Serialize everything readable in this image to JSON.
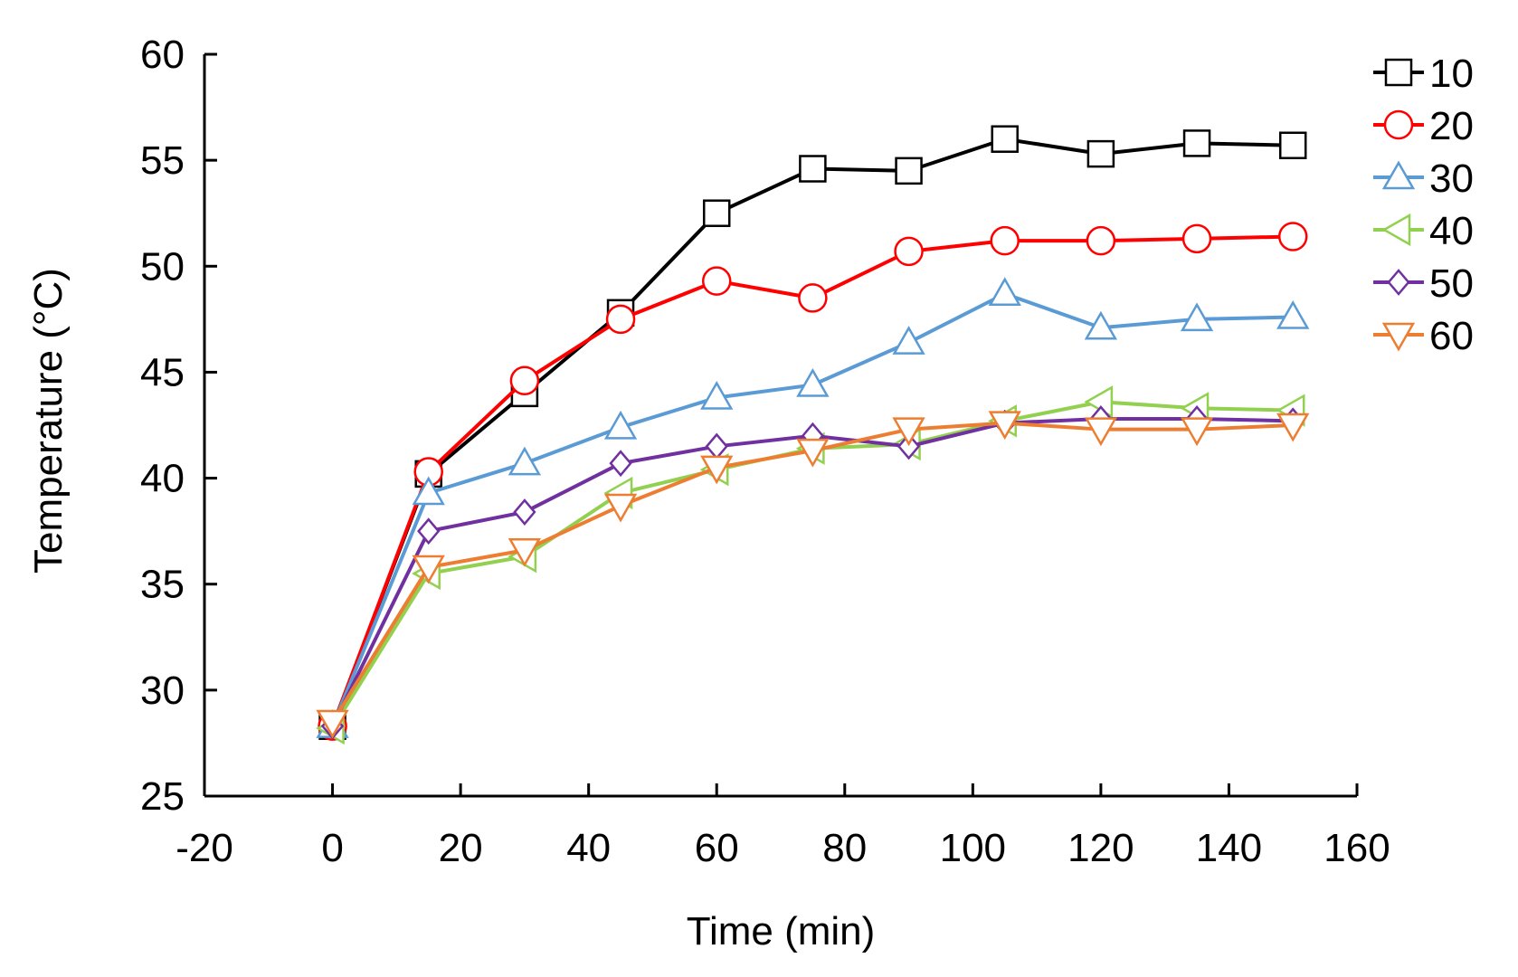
{
  "chart_data": {
    "type": "line",
    "title": "",
    "xlabel": "Time (min)",
    "ylabel": "Temperature (°C)",
    "xlim": [
      -20,
      160
    ],
    "ylim": [
      25,
      60
    ],
    "xticks": [
      -20,
      0,
      20,
      40,
      60,
      80,
      100,
      120,
      140,
      160
    ],
    "yticks": [
      25,
      30,
      35,
      40,
      45,
      50,
      55,
      60
    ],
    "legend_position": "right",
    "x": [
      0,
      15,
      30,
      45,
      60,
      75,
      90,
      105,
      120,
      135,
      150
    ],
    "series": [
      {
        "name": "10",
        "marker": "square",
        "color": "#000000",
        "values": [
          28.3,
          40.2,
          44.0,
          47.8,
          52.5,
          54.6,
          54.5,
          56.0,
          55.3,
          55.8,
          55.7
        ]
      },
      {
        "name": "20",
        "marker": "circle",
        "color": "#ff0000",
        "values": [
          28.3,
          40.3,
          44.6,
          47.5,
          49.3,
          48.5,
          50.7,
          51.2,
          51.2,
          51.3,
          51.4
        ]
      },
      {
        "name": "30",
        "marker": "triangle-up",
        "color": "#5b9bd5",
        "values": [
          28.3,
          39.3,
          40.7,
          42.4,
          43.8,
          44.4,
          46.4,
          48.7,
          47.1,
          47.5,
          47.6
        ]
      },
      {
        "name": "40",
        "marker": "triangle-left",
        "color": "#92d050",
        "values": [
          28.2,
          35.5,
          36.3,
          39.3,
          40.4,
          41.4,
          41.6,
          42.7,
          43.6,
          43.3,
          43.2
        ]
      },
      {
        "name": "50",
        "marker": "diamond",
        "color": "#7030a0",
        "values": [
          28.3,
          37.5,
          38.4,
          40.7,
          41.5,
          42.0,
          41.5,
          42.6,
          42.8,
          42.8,
          42.7
        ]
      },
      {
        "name": "60",
        "marker": "triangle-down",
        "color": "#ed7d31",
        "values": [
          28.5,
          35.8,
          36.6,
          38.7,
          40.5,
          41.3,
          42.3,
          42.6,
          42.3,
          42.3,
          42.5
        ]
      }
    ]
  }
}
